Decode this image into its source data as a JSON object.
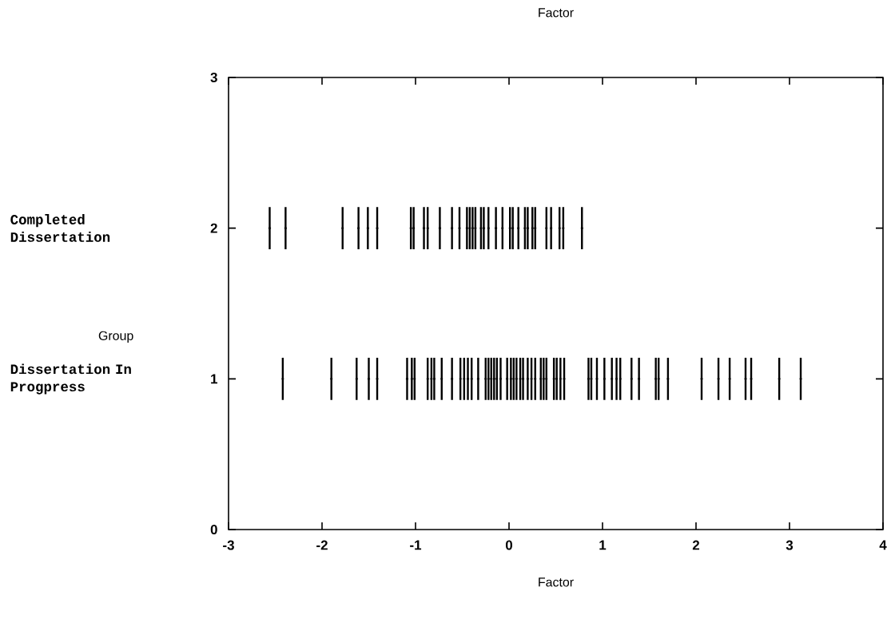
{
  "chart_data": {
    "type": "scatter",
    "title": "Factor",
    "xlabel": "Factor",
    "annotations": [
      "Group",
      "Completed Dissertation",
      "Dissertation In Progpress"
    ],
    "marker": "circle",
    "xlim": [
      -3,
      4
    ],
    "xticks": [
      -3,
      -2,
      -1,
      0,
      1,
      2,
      3,
      4
    ],
    "ylim": [
      0,
      3
    ],
    "yticks": [
      0,
      1,
      2,
      3
    ],
    "series": [
      {
        "color": "#000000",
        "x": [
          -2.56,
          -2.39,
          -1.78,
          -1.61,
          -1.51,
          -1.41,
          -1.05,
          -1.02,
          -0.91,
          -0.87,
          -0.74,
          -0.61,
          -0.53,
          -0.45,
          -0.42,
          -0.39,
          -0.36,
          -0.3,
          -0.27,
          -0.22,
          -0.14,
          -0.07,
          0.01,
          0.04,
          0.1,
          0.17,
          0.2,
          0.25,
          0.28,
          0.4,
          0.45,
          0.54,
          0.58,
          0.78
        ],
        "values": [
          2,
          2,
          2,
          2,
          2,
          2,
          2,
          2,
          2,
          2,
          2,
          2,
          2,
          2,
          2,
          2,
          2,
          2,
          2,
          2,
          2,
          2,
          2,
          2,
          2,
          2,
          2,
          2,
          2,
          2,
          2,
          2,
          2,
          2
        ],
        "errors": [
          0.14,
          0.14,
          0.14,
          0.14,
          0.14,
          0.14,
          0.14,
          0.14,
          0.14,
          0.14,
          0.14,
          0.14,
          0.14,
          0.14,
          0.14,
          0.14,
          0.14,
          0.14,
          0.14,
          0.14,
          0.14,
          0.14,
          0.14,
          0.14,
          0.14,
          0.14,
          0.14,
          0.14,
          0.14,
          0.14,
          0.14,
          0.14,
          0.14,
          0.14
        ]
      },
      {
        "color": "#000000",
        "x": [
          -2.42,
          -1.9,
          -1.63,
          -1.5,
          -1.41,
          -1.09,
          -1.04,
          -1.01,
          -0.87,
          -0.83,
          -0.8,
          -0.72,
          -0.61,
          -0.52,
          -0.48,
          -0.44,
          -0.4,
          -0.33,
          -0.25,
          -0.22,
          -0.19,
          -0.16,
          -0.13,
          -0.09,
          -0.02,
          0.02,
          0.05,
          0.08,
          0.12,
          0.15,
          0.2,
          0.24,
          0.28,
          0.34,
          0.37,
          0.4,
          0.48,
          0.51,
          0.55,
          0.59,
          0.85,
          0.88,
          0.94,
          1.02,
          1.1,
          1.15,
          1.19,
          1.31,
          1.39,
          1.57,
          1.6,
          1.7,
          2.06,
          2.24,
          2.36,
          2.53,
          2.59,
          2.89,
          3.12
        ],
        "values": [
          1,
          1,
          1,
          1,
          1,
          1,
          1,
          1,
          1,
          1,
          1,
          1,
          1,
          1,
          1,
          1,
          1,
          1,
          1,
          1,
          1,
          1,
          1,
          1,
          1,
          1,
          1,
          1,
          1,
          1,
          1,
          1,
          1,
          1,
          1,
          1,
          1,
          1,
          1,
          1,
          1,
          1,
          1,
          1,
          1,
          1,
          1,
          1,
          1,
          1,
          1,
          1,
          1,
          1,
          1,
          1,
          1,
          1,
          1
        ],
        "errors": [
          0.14,
          0.14,
          0.14,
          0.14,
          0.14,
          0.14,
          0.14,
          0.14,
          0.14,
          0.14,
          0.14,
          0.14,
          0.14,
          0.14,
          0.14,
          0.14,
          0.14,
          0.14,
          0.14,
          0.14,
          0.14,
          0.14,
          0.14,
          0.14,
          0.14,
          0.14,
          0.14,
          0.14,
          0.14,
          0.14,
          0.14,
          0.14,
          0.14,
          0.14,
          0.14,
          0.14,
          0.14,
          0.14,
          0.14,
          0.14,
          0.14,
          0.14,
          0.14,
          0.14,
          0.14,
          0.14,
          0.14,
          0.14,
          0.14,
          0.14,
          0.14,
          0.14,
          0.14,
          0.14,
          0.14,
          0.14,
          0.14,
          0.14,
          0.14
        ]
      }
    ]
  }
}
